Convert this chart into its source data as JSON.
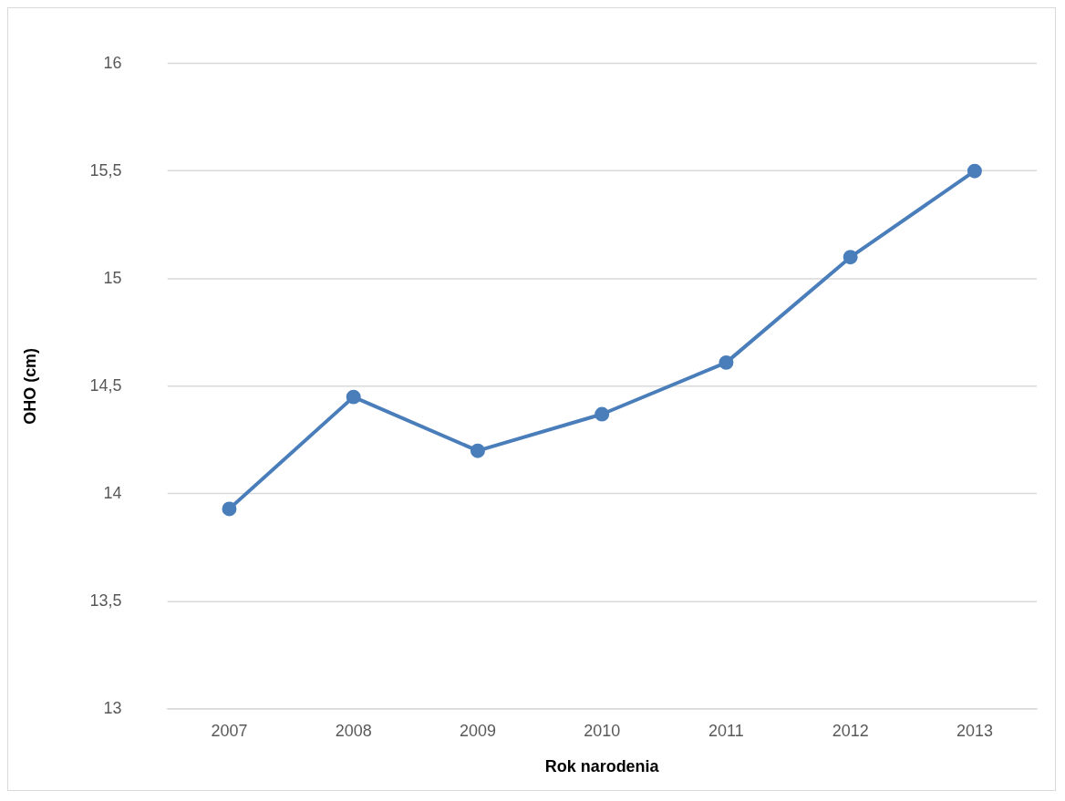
{
  "chart_data": {
    "type": "line",
    "xlabel": "Rok narodenia",
    "ylabel": "OHO (cm)",
    "categories": [
      "2007",
      "2008",
      "2009",
      "2010",
      "2011",
      "2012",
      "2013"
    ],
    "series": [
      {
        "color": "#4a7ebb",
        "values": [
          13.93,
          14.45,
          14.2,
          14.37,
          14.61,
          15.1,
          15.5
        ]
      }
    ],
    "ylim": [
      13,
      16
    ],
    "yticks": [
      13,
      {
        "value": 13.5,
        "label": "13,5"
      },
      14,
      {
        "value": 14.5,
        "label": "14,5"
      },
      15,
      {
        "value": 15.5,
        "label": "15,5"
      },
      16
    ],
    "grid": "y",
    "legend": false,
    "marker": "circle",
    "line_style": "solid"
  }
}
